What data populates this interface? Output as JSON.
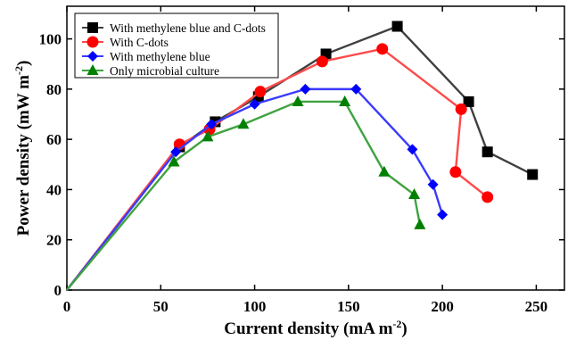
{
  "chart_data": {
    "type": "line",
    "title": "",
    "xlabel": "Current density (mA m",
    "xlabel_sup": "-2",
    "xlabel_end": ")",
    "ylabel": "Power density (mW m",
    "ylabel_sup": "-2",
    "ylabel_end": ")",
    "xlim": [
      0,
      265
    ],
    "ylim": [
      0,
      113
    ],
    "xticks": [
      0,
      50,
      100,
      150,
      200,
      250
    ],
    "yticks": [
      0,
      20,
      40,
      60,
      80,
      100
    ],
    "legend_position": "top-left",
    "grid": false,
    "series": [
      {
        "name": "With methylene blue and C-dots",
        "color": "#404040",
        "marker": "square",
        "x": [
          0,
          60,
          79,
          102,
          138,
          176,
          214,
          224,
          248
        ],
        "y": [
          0,
          57,
          67,
          77,
          94,
          105,
          75,
          55,
          46
        ]
      },
      {
        "name": "With C-dots",
        "color": "#ff4a4a",
        "marker": "circle",
        "x": [
          0,
          60,
          76,
          103,
          136,
          168,
          210,
          207,
          224
        ],
        "y": [
          0,
          58,
          64,
          79,
          91,
          96,
          72,
          47,
          37
        ]
      },
      {
        "name": "With methylene blue",
        "color": "#3a3aff",
        "marker": "diamond",
        "x": [
          0,
          58,
          77,
          100,
          127,
          154,
          184,
          195,
          200
        ],
        "y": [
          0,
          55,
          66,
          74,
          80,
          80,
          56,
          42,
          30
        ]
      },
      {
        "name": "Only microbial culture",
        "color": "#3fa33f",
        "marker": "triangle",
        "x": [
          0,
          57,
          75,
          94,
          123,
          148,
          169,
          185,
          188
        ],
        "y": [
          0,
          51,
          61,
          66,
          75,
          75,
          47,
          38,
          26
        ]
      }
    ]
  }
}
